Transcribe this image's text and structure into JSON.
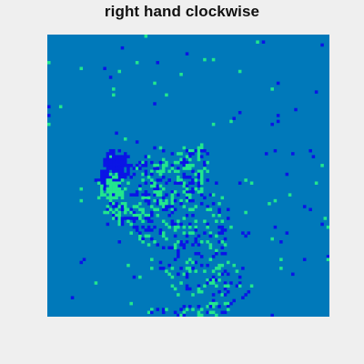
{
  "figure": {
    "title": "right hand clockwise",
    "background_color": "#efefef"
  },
  "image": {
    "description_type": "thresholded event/motion map",
    "grid": "96x96 cells",
    "colors": {
      "background": "#0079ba",
      "blue": "#0a14e6",
      "green": "#22e68e"
    }
  }
}
